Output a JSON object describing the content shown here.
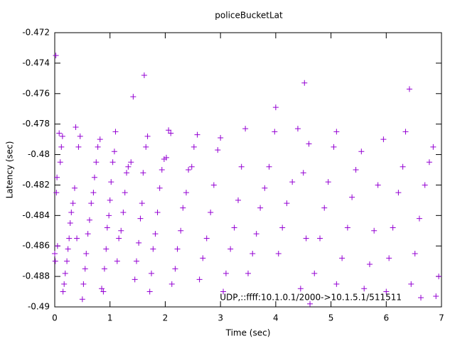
{
  "chart_data": {
    "type": "scatter",
    "title": "policeBucketLat",
    "x_label": "Time (sec)",
    "y_label": "Latency (sec)",
    "xlim": [
      0,
      7
    ],
    "ylim": [
      -0.49,
      -0.472
    ],
    "xticks": [
      0,
      1,
      2,
      3,
      4,
      5,
      6,
      7
    ],
    "yticks": [
      -0.49,
      -0.488,
      -0.486,
      -0.484,
      -0.482,
      -0.48,
      -0.478,
      -0.476,
      -0.474,
      -0.472
    ],
    "legend": "bottom-right",
    "series": [
      {
        "name": "UDP,::ffff:10.1.0.1/2000->10.1.5.1/511511",
        "color": "#9400d3",
        "x": [
          0.0,
          0.01,
          0.02,
          0.03,
          0.04,
          0.05,
          0.08,
          0.1,
          0.12,
          0.14,
          0.15,
          0.17,
          0.19,
          0.22,
          0.24,
          0.26,
          0.28,
          0.3,
          0.33,
          0.36,
          0.38,
          0.4,
          0.43,
          0.46,
          0.5,
          0.52,
          0.55,
          0.57,
          0.6,
          0.63,
          0.66,
          0.7,
          0.72,
          0.75,
          0.78,
          0.82,
          0.85,
          0.88,
          0.9,
          0.93,
          0.95,
          0.98,
          1.0,
          1.02,
          1.05,
          1.08,
          1.1,
          1.13,
          1.16,
          1.2,
          1.24,
          1.27,
          1.3,
          1.33,
          1.38,
          1.42,
          1.45,
          1.48,
          1.52,
          1.55,
          1.58,
          1.6,
          1.62,
          1.65,
          1.68,
          1.72,
          1.75,
          1.78,
          1.82,
          1.86,
          1.9,
          1.94,
          1.98,
          2.02,
          2.06,
          2.1,
          2.12,
          2.18,
          2.22,
          2.28,
          2.32,
          2.38,
          2.42,
          2.48,
          2.52,
          2.58,
          2.62,
          2.68,
          2.75,
          2.82,
          2.88,
          2.95,
          3.0,
          3.05,
          3.1,
          3.18,
          3.25,
          3.32,
          3.38,
          3.45,
          3.5,
          3.58,
          3.65,
          3.72,
          3.8,
          3.88,
          3.98,
          4.0,
          4.05,
          4.12,
          4.2,
          4.3,
          4.4,
          4.52,
          4.55,
          4.5,
          4.6,
          4.45,
          4.62,
          4.7,
          4.8,
          4.88,
          4.95,
          5.05,
          5.1,
          5.1,
          5.2,
          5.3,
          5.38,
          5.45,
          5.55,
          5.6,
          5.7,
          5.78,
          5.85,
          5.95,
          6.0,
          6.05,
          6.12,
          6.22,
          6.3,
          6.35,
          6.42,
          6.45,
          6.52,
          6.6,
          6.7,
          6.78,
          6.85,
          6.9,
          6.95
        ],
        "values": [
          -0.4865,
          -0.487,
          -0.4735,
          -0.4825,
          -0.4815,
          -0.486,
          -0.4786,
          -0.4805,
          -0.4795,
          -0.4788,
          -0.489,
          -0.4885,
          -0.4878,
          -0.487,
          -0.4862,
          -0.4855,
          -0.4845,
          -0.4838,
          -0.4832,
          -0.4822,
          -0.4782,
          -0.4855,
          -0.4795,
          -0.4788,
          -0.4895,
          -0.4885,
          -0.4875,
          -0.4865,
          -0.4852,
          -0.4843,
          -0.4832,
          -0.4825,
          -0.4815,
          -0.4805,
          -0.4795,
          -0.479,
          -0.4888,
          -0.489,
          -0.4875,
          -0.4862,
          -0.4848,
          -0.484,
          -0.483,
          -0.4818,
          -0.4805,
          -0.4798,
          -0.4785,
          -0.487,
          -0.4855,
          -0.485,
          -0.4838,
          -0.4825,
          -0.4812,
          -0.4808,
          -0.4805,
          -0.4762,
          -0.4882,
          -0.487,
          -0.4858,
          -0.4842,
          -0.4832,
          -0.4812,
          -0.4748,
          -0.4795,
          -0.4788,
          -0.489,
          -0.4878,
          -0.4862,
          -0.4852,
          -0.4838,
          -0.4822,
          -0.481,
          -0.4803,
          -0.4802,
          -0.4784,
          -0.4786,
          -0.4885,
          -0.4875,
          -0.4862,
          -0.485,
          -0.4835,
          -0.4825,
          -0.481,
          -0.4808,
          -0.4795,
          -0.4787,
          -0.4882,
          -0.4868,
          -0.4855,
          -0.4838,
          -0.482,
          -0.4797,
          -0.4789,
          -0.489,
          -0.4878,
          -0.4862,
          -0.4848,
          -0.483,
          -0.4808,
          -0.4783,
          -0.4878,
          -0.4865,
          -0.4852,
          -0.4835,
          -0.4822,
          -0.4808,
          -0.4785,
          -0.4769,
          -0.4865,
          -0.4848,
          -0.4832,
          -0.4818,
          -0.4783,
          -0.4753,
          -0.4855,
          -0.4812,
          -0.4793,
          -0.4888,
          -0.4898,
          -0.4878,
          -0.4855,
          -0.4835,
          -0.4818,
          -0.4795,
          -0.4785,
          -0.4885,
          -0.4868,
          -0.4848,
          -0.4828,
          -0.481,
          -0.4798,
          -0.4888,
          -0.4872,
          -0.485,
          -0.482,
          -0.479,
          -0.489,
          -0.4868,
          -0.4848,
          -0.4825,
          -0.4808,
          -0.4785,
          -0.4757,
          -0.4885,
          -0.4865,
          -0.4842,
          -0.482,
          -0.4805,
          -0.4795,
          -0.4893,
          -0.488
        ]
      }
    ]
  }
}
